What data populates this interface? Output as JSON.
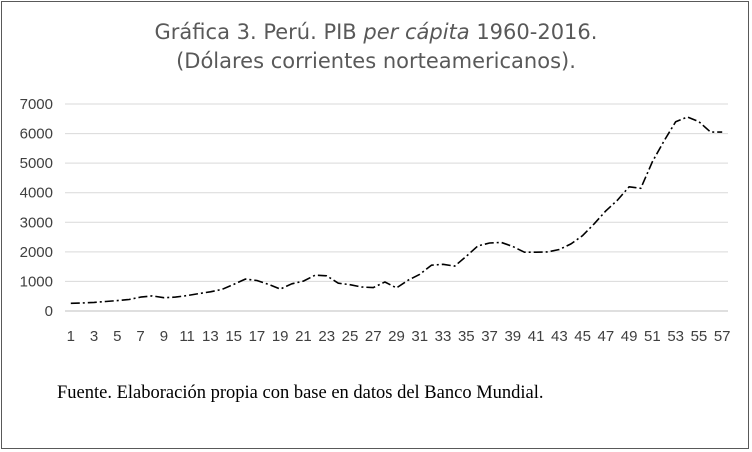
{
  "chart_data": {
    "type": "line",
    "title_parts": {
      "before": "Gráfica 3. Perú. PIB ",
      "italic": "per cápita",
      "after": " 1960-2016."
    },
    "subtitle": "(Dólares corrientes norteamericanos).",
    "xlabel": "",
    "ylabel": "",
    "ylim": [
      0,
      7000
    ],
    "y_ticks": [
      0,
      1000,
      2000,
      3000,
      4000,
      5000,
      6000,
      7000
    ],
    "x_tick_labels": [
      1,
      3,
      5,
      7,
      9,
      11,
      13,
      15,
      17,
      19,
      21,
      23,
      25,
      27,
      29,
      31,
      33,
      35,
      37,
      39,
      41,
      43,
      45,
      47,
      49,
      51,
      53,
      55,
      57
    ],
    "grid": true,
    "legend": "none",
    "line_color": "#000000",
    "x": [
      1,
      2,
      3,
      4,
      5,
      6,
      7,
      8,
      9,
      10,
      11,
      12,
      13,
      14,
      15,
      16,
      17,
      18,
      19,
      20,
      21,
      22,
      23,
      24,
      25,
      26,
      27,
      28,
      29,
      30,
      31,
      32,
      33,
      34,
      35,
      36,
      37,
      38,
      39,
      40,
      41,
      42,
      43,
      44,
      45,
      46,
      47,
      48,
      49,
      50,
      51,
      52,
      53,
      54,
      55,
      56,
      57
    ],
    "values": [
      260,
      270,
      290,
      320,
      350,
      390,
      470,
      510,
      450,
      470,
      520,
      590,
      650,
      730,
      900,
      1080,
      1030,
      900,
      740,
      920,
      1010,
      1210,
      1190,
      940,
      890,
      810,
      790,
      980,
      780,
      1040,
      1240,
      1550,
      1580,
      1520,
      1850,
      2200,
      2300,
      2320,
      2180,
      1990,
      1990,
      2000,
      2080,
      2270,
      2550,
      2950,
      3390,
      3750,
      4200,
      4150,
      5050,
      5750,
      6400,
      6560,
      6400,
      6050,
      6050
    ]
  },
  "source_note": "Fuente. Elaboración propia con base en datos del Banco Mundial."
}
